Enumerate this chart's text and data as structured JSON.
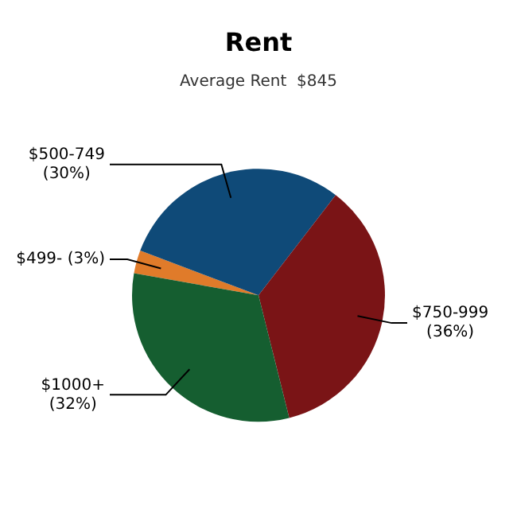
{
  "chart_data": {
    "type": "pie",
    "title": "Rent",
    "subtitle": "Average Rent  $845",
    "categories": [
      "$499-",
      "$500-749",
      "$750-999",
      "$1000+"
    ],
    "values": [
      3,
      30,
      36,
      32
    ],
    "value_labels": [
      "(3%)",
      "(30%)",
      "(36%)",
      "(32%)"
    ],
    "colors": [
      "#e07b2a",
      "#0f4a78",
      "#7a1416",
      "#155e30"
    ],
    "legend": false
  }
}
